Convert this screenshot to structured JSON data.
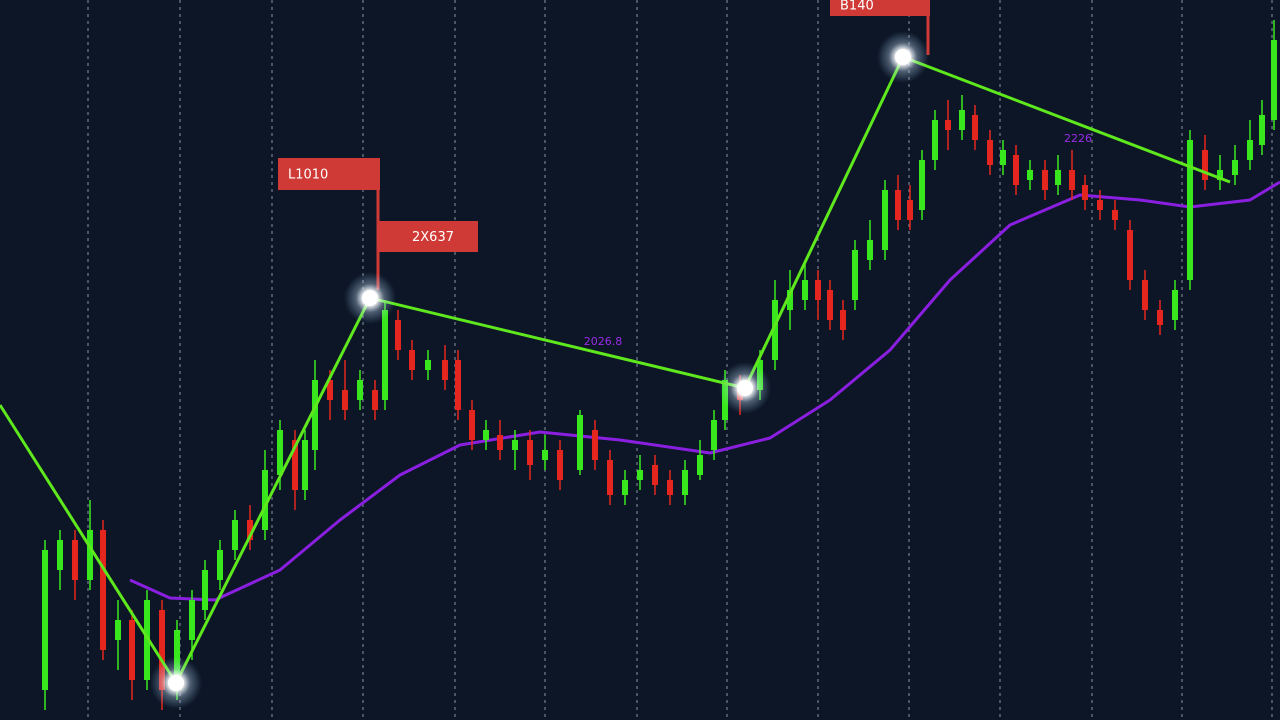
{
  "chart_data": {
    "type": "candlestick",
    "xlim": [
      0,
      1280
    ],
    "ylim": [
      0,
      720
    ],
    "xticks": [
      88,
      180,
      272,
      363,
      455,
      545,
      637,
      727,
      818,
      909,
      1000,
      1092,
      1182,
      1272
    ],
    "grid": true,
    "background": "#0c1626",
    "up_color": "#39e81c",
    "down_color": "#e5261e",
    "candles": {
      "x": [
        45,
        60,
        75,
        90,
        103,
        118,
        132,
        147,
        162,
        177,
        192,
        205,
        220,
        235,
        250,
        265,
        280,
        295,
        305,
        315,
        330,
        345,
        360,
        375,
        385,
        398,
        412,
        428,
        445,
        458,
        472,
        486,
        500,
        515,
        530,
        545,
        560,
        580,
        595,
        610,
        625,
        640,
        655,
        670,
        685,
        700,
        714,
        725,
        740,
        760,
        775,
        790,
        805,
        818,
        830,
        843,
        855,
        870,
        885,
        898,
        910,
        922,
        935,
        948,
        962,
        975,
        990,
        1003,
        1016,
        1030,
        1045,
        1058,
        1072,
        1085,
        1100,
        1115,
        1130,
        1145,
        1160,
        1175,
        1190,
        1205,
        1220,
        1235,
        1250,
        1262,
        1274
      ],
      "open": [
        30,
        150,
        180,
        140,
        190,
        80,
        100,
        40,
        110,
        30,
        80,
        110,
        140,
        170,
        200,
        190,
        245,
        280,
        230,
        270,
        340,
        330,
        320,
        330,
        320,
        400,
        370,
        350,
        360,
        360,
        310,
        280,
        285,
        270,
        280,
        260,
        270,
        250,
        290,
        260,
        225,
        240,
        255,
        240,
        225,
        245,
        270,
        300,
        330,
        330,
        360,
        410,
        420,
        440,
        430,
        410,
        420,
        460,
        470,
        530,
        520,
        510,
        560,
        600,
        590,
        605,
        580,
        555,
        565,
        540,
        550,
        535,
        550,
        535,
        520,
        510,
        490,
        440,
        410,
        400,
        440,
        570,
        540,
        545,
        560,
        575,
        600
      ],
      "high": [
        180,
        190,
        190,
        220,
        200,
        120,
        110,
        130,
        120,
        100,
        130,
        160,
        180,
        210,
        215,
        270,
        300,
        290,
        290,
        360,
        350,
        360,
        350,
        340,
        420,
        410,
        380,
        370,
        375,
        370,
        320,
        300,
        300,
        290,
        290,
        285,
        280,
        310,
        300,
        270,
        250,
        265,
        265,
        250,
        260,
        280,
        310,
        350,
        345,
        370,
        440,
        450,
        460,
        450,
        440,
        420,
        480,
        500,
        540,
        545,
        535,
        570,
        610,
        620,
        625,
        615,
        590,
        580,
        575,
        560,
        560,
        565,
        570,
        545,
        530,
        520,
        500,
        450,
        420,
        440,
        590,
        585,
        565,
        575,
        600,
        620,
        700
      ],
      "low": [
        10,
        130,
        120,
        130,
        60,
        50,
        20,
        30,
        10,
        20,
        60,
        100,
        130,
        160,
        170,
        180,
        230,
        210,
        220,
        250,
        300,
        300,
        310,
        300,
        310,
        360,
        340,
        340,
        330,
        300,
        270,
        270,
        260,
        250,
        240,
        250,
        230,
        245,
        250,
        215,
        215,
        230,
        225,
        215,
        215,
        240,
        260,
        290,
        305,
        320,
        350,
        390,
        410,
        400,
        390,
        380,
        410,
        450,
        460,
        490,
        490,
        500,
        550,
        570,
        580,
        570,
        545,
        545,
        525,
        530,
        520,
        525,
        520,
        510,
        500,
        490,
        430,
        400,
        385,
        390,
        430,
        530,
        530,
        535,
        550,
        565,
        590
      ],
      "close": [
        170,
        180,
        140,
        190,
        70,
        100,
        40,
        120,
        30,
        90,
        120,
        150,
        170,
        200,
        180,
        250,
        290,
        230,
        280,
        340,
        320,
        310,
        340,
        310,
        410,
        370,
        350,
        360,
        340,
        310,
        280,
        290,
        270,
        280,
        255,
        270,
        240,
        305,
        260,
        225,
        240,
        250,
        235,
        225,
        250,
        265,
        300,
        340,
        320,
        360,
        420,
        430,
        440,
        420,
        400,
        390,
        470,
        480,
        530,
        500,
        500,
        560,
        600,
        590,
        610,
        580,
        555,
        570,
        535,
        550,
        530,
        550,
        530,
        520,
        510,
        500,
        440,
        410,
        395,
        430,
        580,
        540,
        550,
        560,
        580,
        605,
        680
      ]
    },
    "lines": [
      {
        "color": "#8a1fe0",
        "x": [
          130,
          170,
          215,
          280,
          340,
          400,
          460,
          540,
          620,
          710,
          770,
          830,
          890,
          950,
          1010,
          1080,
          1140,
          1190,
          1250,
          1280
        ],
        "values": [
          140,
          122,
          120,
          150,
          200,
          245,
          275,
          288,
          280,
          267,
          282,
          320,
          370,
          440,
          495,
          525,
          520,
          513,
          520,
          538
        ]
      },
      {
        "color": "#5ee81d",
        "x": [
          0,
          176,
          370,
          745,
          903,
          1230
        ],
        "values": [
          315,
          37,
          422,
          332,
          663,
          538
        ]
      }
    ],
    "markers": {
      "color": "#ffffff",
      "x": [
        176,
        370,
        745,
        903
      ],
      "values": [
        37,
        422,
        332,
        663
      ]
    },
    "annotations": [
      {
        "text": "L1010",
        "color": "#cf3a36"
      },
      {
        "text": "2X637",
        "color": "#cf3a36"
      },
      {
        "text": "B140",
        "color": "#cf3a36"
      },
      {
        "text": "2026.8",
        "color": "#9a2ce8"
      },
      {
        "text": "2226",
        "color": "#9a2ce8"
      }
    ]
  }
}
